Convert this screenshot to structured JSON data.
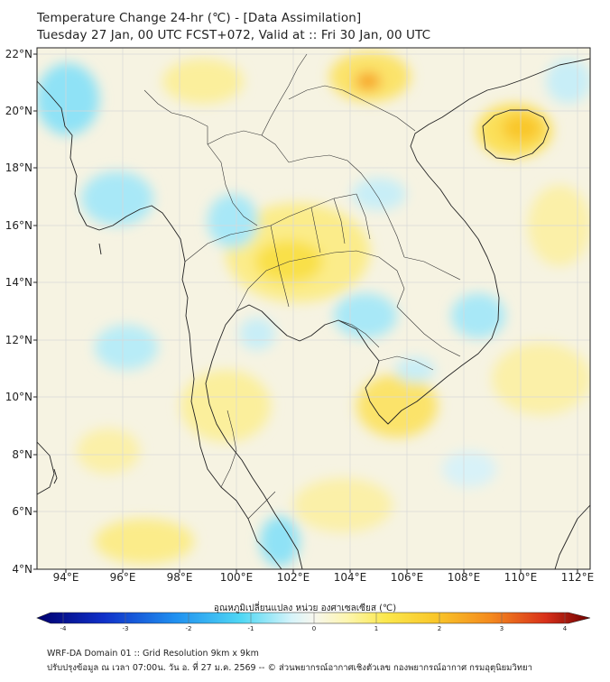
{
  "header": {
    "title_line1": "Temperature Change 24-hr (℃) - [Data Assimilation]",
    "title_line2": "Tuesday 27 Jan, 00 UTC FCST+072, Valid at :: Fri 30 Jan, 00 UTC"
  },
  "map": {
    "lat_labels": [
      "22°N",
      "20°N",
      "18°N",
      "16°N",
      "14°N",
      "12°N",
      "10°N",
      "8°N",
      "6°N",
      "4°N"
    ],
    "lon_labels": [
      "94°E",
      "96°E",
      "98°E",
      "100°E",
      "102°E",
      "104°E",
      "106°E",
      "108°E",
      "110°E",
      "112°E"
    ],
    "lat_range": [
      4,
      22
    ],
    "lon_range": [
      93,
      112.5
    ]
  },
  "colorbar": {
    "title": "อุณหภูมิเปลี่ยนแปลง หน่วย องศาเซลเซียส (℃)",
    "ticks": [
      "-4",
      "-3",
      "-2",
      "-1",
      "0",
      "1",
      "2",
      "3",
      "4"
    ],
    "range": [
      -4,
      4
    ]
  },
  "footer": {
    "line1": "WRF-DA Domain 01 :: Grid Resolution 9km x 9km",
    "line2": "ปรับปรุงข้อมูล ณ เวลา 07:00น. วัน อ. ที่ 27 ม.ค. 2569 -- © ส่วนพยากรณ์อากาศเชิงตัวเลข กองพยากรณ์อากาศ กรมอุตุนิยมวิทยา"
  },
  "colors": {
    "near_zero": "#f6f3e2",
    "warm_light": "#fbf09a",
    "warm_mid": "#f9dd2c",
    "warm_strong": "#f7a421",
    "cool_light": "#c8eef7",
    "cool_mid": "#66d8f3",
    "border": "#222222",
    "grid": "#d8d8d8"
  }
}
